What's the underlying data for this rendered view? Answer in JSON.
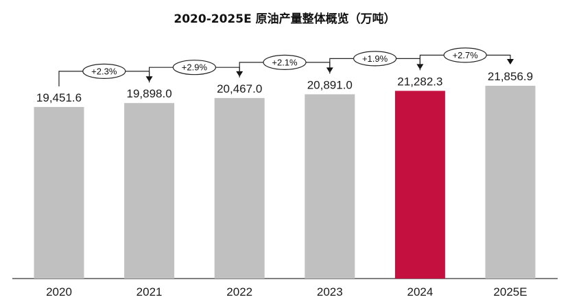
{
  "chart_data": {
    "type": "bar",
    "title": "2020-2025E 原油产量整体概览（万吨）",
    "categories": [
      "2020",
      "2021",
      "2022",
      "2023",
      "2024",
      "2025E"
    ],
    "values": [
      19451.6,
      19898.0,
      20467.0,
      20891.0,
      21282.3,
      21856.9
    ],
    "value_labels": [
      "19,451.6",
      "19,898.0",
      "20,467.0",
      "20,891.0",
      "21,282.3",
      "21,856.9"
    ],
    "growth_labels": [
      "+2.3%",
      "+2.9%",
      "+2.1%",
      "+1.9%",
      "+2.7%"
    ],
    "highlight_index": 4,
    "colors": {
      "bar": "#c0c0c0",
      "highlight": "#c4103f"
    },
    "ylim": [
      0,
      21856.9
    ],
    "xlabel": "",
    "ylabel": "",
    "grid": false,
    "legend": "none"
  }
}
